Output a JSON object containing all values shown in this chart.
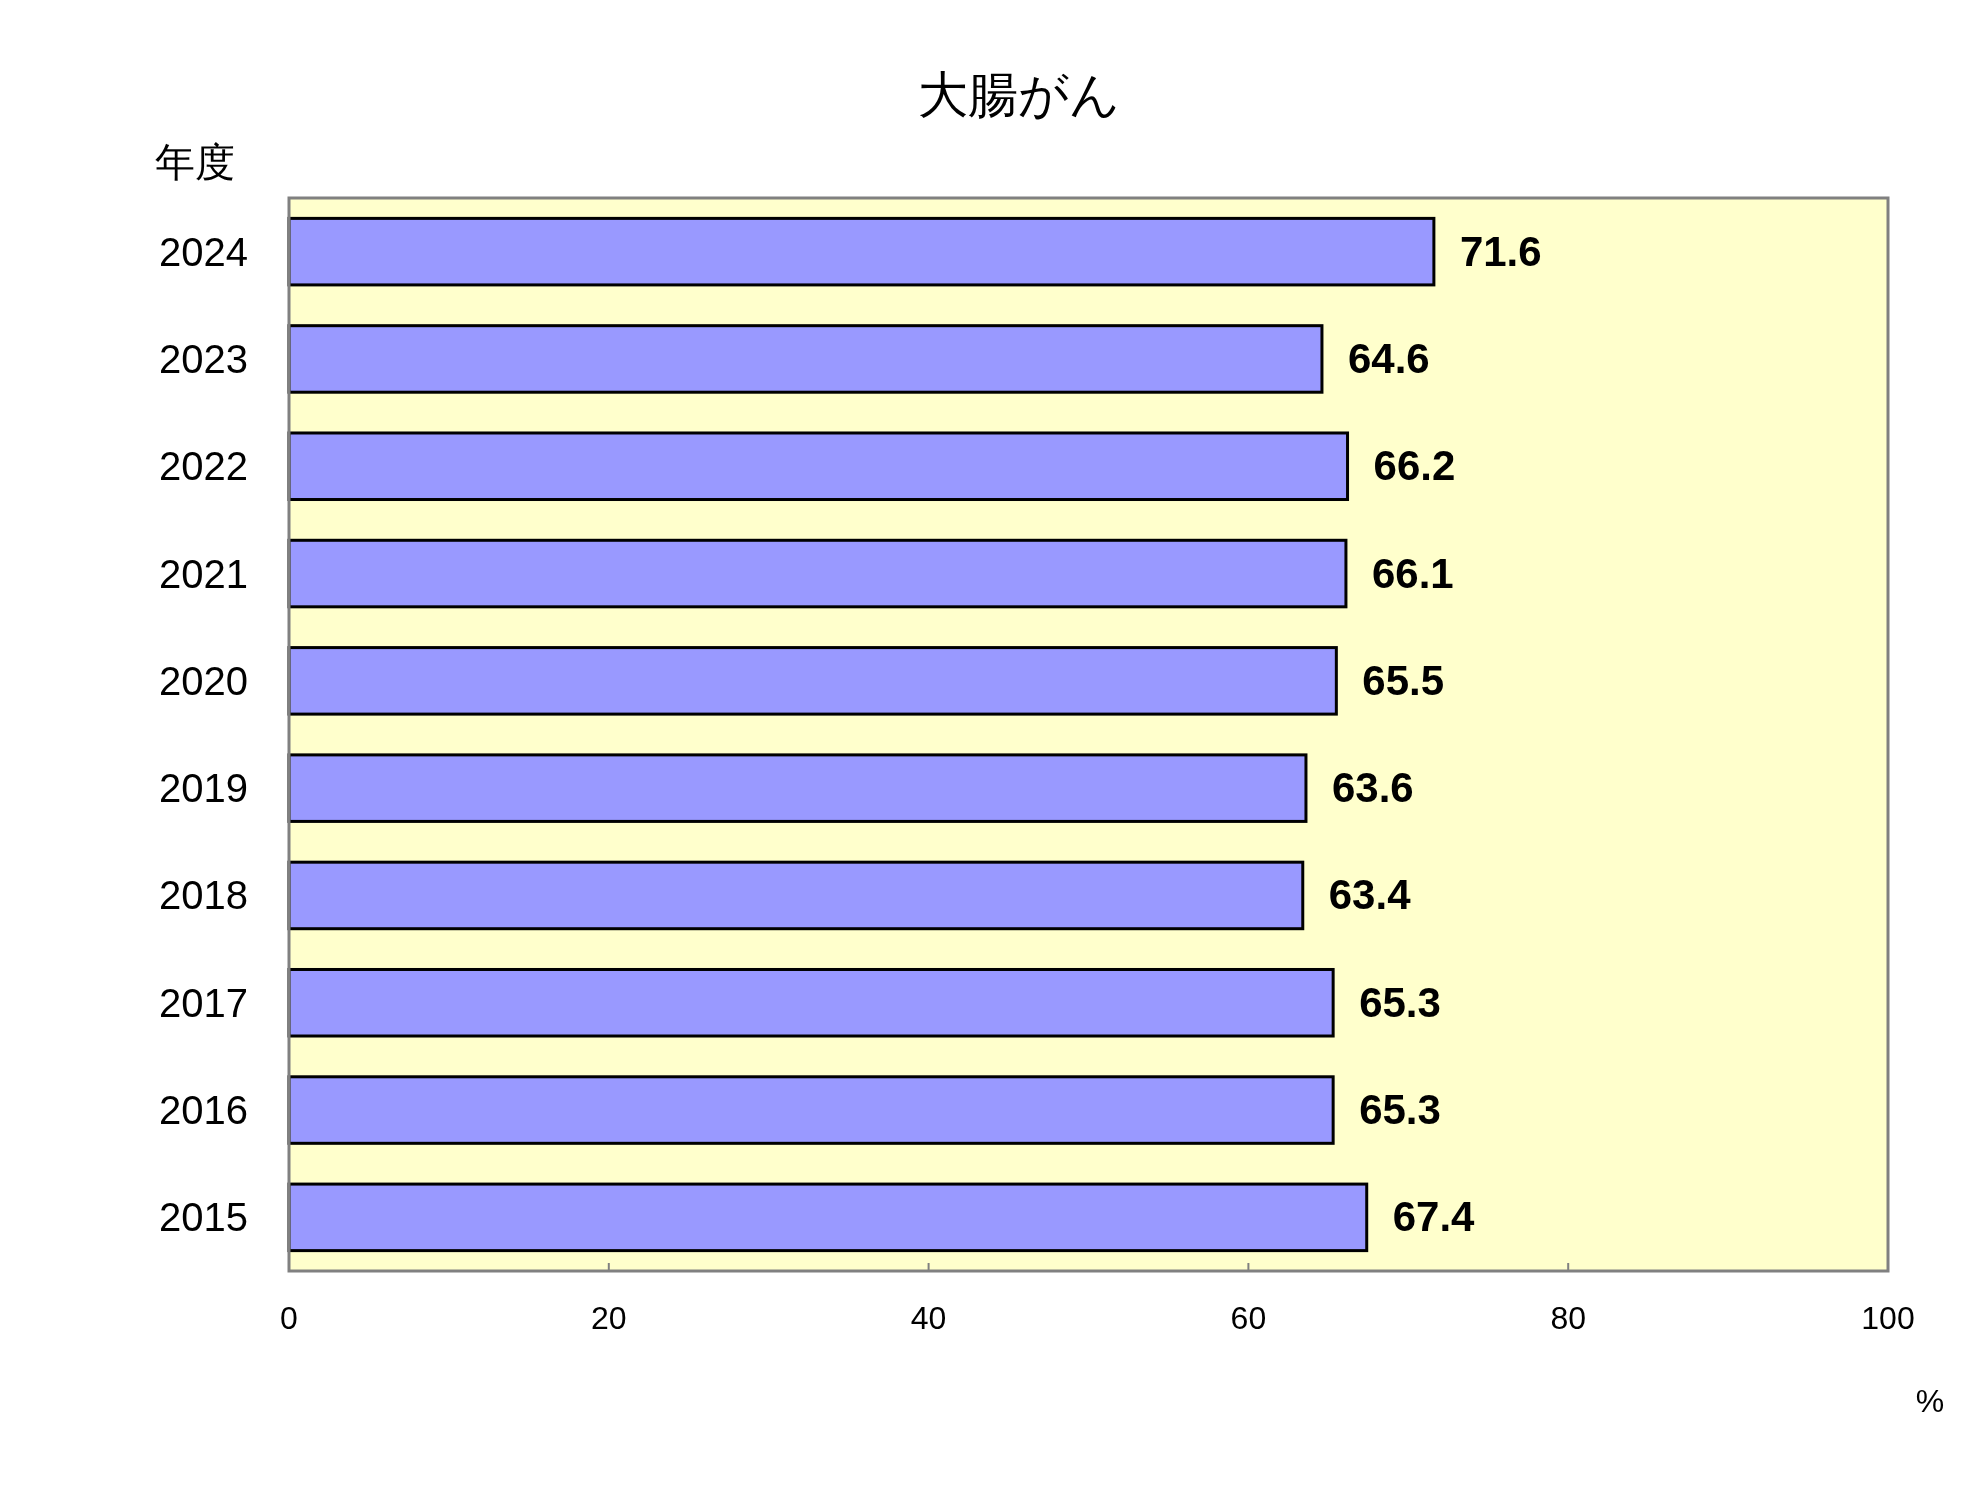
{
  "chart_data": {
    "type": "bar",
    "orientation": "horizontal",
    "title": "大腸がん",
    "ylabel": "年度",
    "xlabel": "%",
    "categories": [
      "2024",
      "2023",
      "2022",
      "2021",
      "2020",
      "2019",
      "2018",
      "2017",
      "2016",
      "2015"
    ],
    "values": [
      71.6,
      64.6,
      66.2,
      66.1,
      65.5,
      63.6,
      63.4,
      65.3,
      65.3,
      67.4
    ],
    "color": "#9999ff",
    "xlim": [
      0,
      100
    ],
    "xticks": [
      0,
      20,
      40,
      60,
      80,
      100
    ],
    "data_labels": true,
    "grid": false
  }
}
